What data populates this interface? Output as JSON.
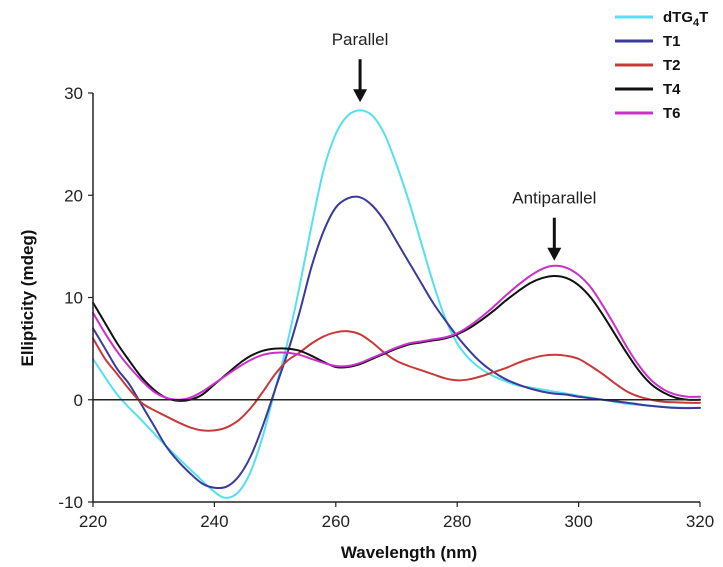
{
  "chart_data": {
    "type": "line",
    "xlabel": "Wavelength (nm)",
    "ylabel": "Ellipticity (mdeg)",
    "xlim": [
      220,
      320
    ],
    "ylim": [
      -10,
      30
    ],
    "x_ticks": [
      220,
      240,
      260,
      280,
      300,
      320
    ],
    "y_ticks": [
      -10,
      0,
      10,
      20,
      30
    ],
    "zero_line": true,
    "grid": false,
    "legend_position": "top-right",
    "legend": [
      {
        "base": "dTG",
        "sub": "4",
        "tail": "T"
      },
      {
        "base": "T1",
        "sub": "",
        "tail": ""
      },
      {
        "base": "T2",
        "sub": "",
        "tail": ""
      },
      {
        "base": "T4",
        "sub": "",
        "tail": ""
      },
      {
        "base": "T6",
        "sub": "",
        "tail": ""
      }
    ],
    "annotations": [
      {
        "text": "Parallel",
        "x": 264,
        "y": 29
      },
      {
        "text": "Antiparallel",
        "x": 296,
        "y": 13.5
      }
    ],
    "series": [
      {
        "name": "dTG4T",
        "color": "#55e0f0",
        "points": [
          [
            220,
            4
          ],
          [
            224,
            0.5
          ],
          [
            228,
            -2
          ],
          [
            232,
            -4.5
          ],
          [
            236,
            -6.8
          ],
          [
            240,
            -9
          ],
          [
            242,
            -9.6
          ],
          [
            244,
            -9
          ],
          [
            246,
            -7
          ],
          [
            248,
            -3.5
          ],
          [
            250,
            1
          ],
          [
            252,
            5.5
          ],
          [
            254,
            11
          ],
          [
            256,
            17
          ],
          [
            258,
            22.5
          ],
          [
            260,
            26
          ],
          [
            262,
            27.8
          ],
          [
            264,
            28.3
          ],
          [
            266,
            27.8
          ],
          [
            268,
            26
          ],
          [
            270,
            23
          ],
          [
            272,
            19.5
          ],
          [
            274,
            15.5
          ],
          [
            276,
            11.5
          ],
          [
            278,
            8
          ],
          [
            280,
            5.5
          ],
          [
            282,
            4
          ],
          [
            284,
            3
          ],
          [
            286,
            2.3
          ],
          [
            288,
            1.8
          ],
          [
            290,
            1.4
          ],
          [
            292,
            1.2
          ],
          [
            294,
            1
          ],
          [
            296,
            0.8
          ],
          [
            298,
            0.6
          ],
          [
            300,
            0.4
          ],
          [
            302,
            0.2
          ],
          [
            304,
            0
          ],
          [
            306,
            -0.2
          ],
          [
            308,
            -0.4
          ],
          [
            310,
            -0.5
          ],
          [
            314,
            -0.7
          ],
          [
            318,
            -0.8
          ],
          [
            320,
            -0.8
          ]
        ]
      },
      {
        "name": "T1",
        "color": "#3a3a9c",
        "points": [
          [
            220,
            7
          ],
          [
            222,
            5
          ],
          [
            224,
            3
          ],
          [
            226,
            1.5
          ],
          [
            228,
            -0.5
          ],
          [
            230,
            -2.5
          ],
          [
            232,
            -4.5
          ],
          [
            234,
            -6
          ],
          [
            236,
            -7.2
          ],
          [
            238,
            -8.2
          ],
          [
            240,
            -8.6
          ],
          [
            242,
            -8.5
          ],
          [
            244,
            -7.5
          ],
          [
            246,
            -5.5
          ],
          [
            248,
            -2.5
          ],
          [
            250,
            1
          ],
          [
            252,
            4.5
          ],
          [
            254,
            8.5
          ],
          [
            256,
            13
          ],
          [
            258,
            16.5
          ],
          [
            260,
            18.8
          ],
          [
            262,
            19.7
          ],
          [
            264,
            19.8
          ],
          [
            266,
            19
          ],
          [
            268,
            17.5
          ],
          [
            270,
            15.5
          ],
          [
            272,
            13.5
          ],
          [
            274,
            11.5
          ],
          [
            276,
            9.5
          ],
          [
            278,
            7.8
          ],
          [
            280,
            6.2
          ],
          [
            282,
            4.8
          ],
          [
            284,
            3.6
          ],
          [
            286,
            2.7
          ],
          [
            288,
            2
          ],
          [
            290,
            1.5
          ],
          [
            292,
            1.1
          ],
          [
            294,
            0.8
          ],
          [
            296,
            0.6
          ],
          [
            298,
            0.5
          ],
          [
            300,
            0.3
          ],
          [
            304,
            0
          ],
          [
            308,
            -0.3
          ],
          [
            312,
            -0.6
          ],
          [
            316,
            -0.8
          ],
          [
            320,
            -0.8
          ]
        ]
      },
      {
        "name": "T2",
        "color": "#c83a3a",
        "points": [
          [
            220,
            6
          ],
          [
            222,
            4
          ],
          [
            224,
            2.5
          ],
          [
            226,
            1
          ],
          [
            228,
            -0.3
          ],
          [
            230,
            -1
          ],
          [
            232,
            -1.6
          ],
          [
            234,
            -2.2
          ],
          [
            236,
            -2.7
          ],
          [
            238,
            -3
          ],
          [
            240,
            -3
          ],
          [
            242,
            -2.7
          ],
          [
            244,
            -2
          ],
          [
            246,
            -0.8
          ],
          [
            248,
            0.8
          ],
          [
            250,
            2.5
          ],
          [
            252,
            3.8
          ],
          [
            254,
            4.6
          ],
          [
            256,
            5.5
          ],
          [
            258,
            6.2
          ],
          [
            260,
            6.6
          ],
          [
            262,
            6.7
          ],
          [
            264,
            6.4
          ],
          [
            266,
            5.6
          ],
          [
            268,
            4.6
          ],
          [
            270,
            3.8
          ],
          [
            272,
            3.3
          ],
          [
            274,
            2.9
          ],
          [
            276,
            2.5
          ],
          [
            278,
            2.1
          ],
          [
            280,
            1.9
          ],
          [
            282,
            2
          ],
          [
            284,
            2.3
          ],
          [
            286,
            2.7
          ],
          [
            288,
            3.1
          ],
          [
            290,
            3.6
          ],
          [
            292,
            4
          ],
          [
            294,
            4.3
          ],
          [
            296,
            4.4
          ],
          [
            298,
            4.3
          ],
          [
            300,
            4
          ],
          [
            302,
            3.3
          ],
          [
            304,
            2.5
          ],
          [
            306,
            1.6
          ],
          [
            308,
            0.8
          ],
          [
            310,
            0.3
          ],
          [
            312,
            0
          ],
          [
            314,
            -0.2
          ],
          [
            318,
            -0.3
          ],
          [
            320,
            -0.3
          ]
        ]
      },
      {
        "name": "T4",
        "color": "#111111",
        "points": [
          [
            220,
            9.5
          ],
          [
            222,
            7.5
          ],
          [
            224,
            5.5
          ],
          [
            226,
            3.8
          ],
          [
            228,
            2.2
          ],
          [
            230,
            1
          ],
          [
            232,
            0.2
          ],
          [
            234,
            -0.1
          ],
          [
            236,
            0
          ],
          [
            238,
            0.5
          ],
          [
            240,
            1.5
          ],
          [
            242,
            2.5
          ],
          [
            244,
            3.5
          ],
          [
            246,
            4.3
          ],
          [
            248,
            4.8
          ],
          [
            250,
            5
          ],
          [
            252,
            5
          ],
          [
            254,
            4.8
          ],
          [
            256,
            4.3
          ],
          [
            258,
            3.7
          ],
          [
            260,
            3.2
          ],
          [
            262,
            3.2
          ],
          [
            264,
            3.5
          ],
          [
            266,
            4
          ],
          [
            268,
            4.5
          ],
          [
            270,
            5
          ],
          [
            272,
            5.4
          ],
          [
            274,
            5.6
          ],
          [
            276,
            5.8
          ],
          [
            278,
            6
          ],
          [
            280,
            6.4
          ],
          [
            282,
            7
          ],
          [
            284,
            7.8
          ],
          [
            286,
            8.7
          ],
          [
            288,
            9.7
          ],
          [
            290,
            10.6
          ],
          [
            292,
            11.4
          ],
          [
            294,
            11.9
          ],
          [
            296,
            12.1
          ],
          [
            298,
            11.9
          ],
          [
            300,
            11.2
          ],
          [
            302,
            10
          ],
          [
            304,
            8.3
          ],
          [
            306,
            6.4
          ],
          [
            308,
            4.5
          ],
          [
            310,
            2.8
          ],
          [
            312,
            1.5
          ],
          [
            314,
            0.7
          ],
          [
            316,
            0.2
          ],
          [
            318,
            0
          ],
          [
            320,
            0
          ]
        ]
      },
      {
        "name": "T6",
        "color": "#cc30cc",
        "points": [
          [
            220,
            8.5
          ],
          [
            222,
            6.5
          ],
          [
            224,
            4.7
          ],
          [
            226,
            3.2
          ],
          [
            228,
            1.9
          ],
          [
            230,
            0.8
          ],
          [
            232,
            0.2
          ],
          [
            234,
            0
          ],
          [
            236,
            0.2
          ],
          [
            238,
            0.8
          ],
          [
            240,
            1.6
          ],
          [
            242,
            2.4
          ],
          [
            244,
            3.2
          ],
          [
            246,
            3.9
          ],
          [
            248,
            4.4
          ],
          [
            250,
            4.6
          ],
          [
            252,
            4.6
          ],
          [
            254,
            4.4
          ],
          [
            256,
            4
          ],
          [
            258,
            3.6
          ],
          [
            260,
            3.3
          ],
          [
            262,
            3.3
          ],
          [
            264,
            3.6
          ],
          [
            266,
            4.1
          ],
          [
            268,
            4.6
          ],
          [
            270,
            5.1
          ],
          [
            272,
            5.5
          ],
          [
            274,
            5.7
          ],
          [
            276,
            5.9
          ],
          [
            278,
            6.1
          ],
          [
            280,
            6.5
          ],
          [
            282,
            7.2
          ],
          [
            284,
            8.1
          ],
          [
            286,
            9.1
          ],
          [
            288,
            10.2
          ],
          [
            290,
            11.2
          ],
          [
            292,
            12.1
          ],
          [
            294,
            12.8
          ],
          [
            296,
            13.1
          ],
          [
            298,
            12.9
          ],
          [
            300,
            12.2
          ],
          [
            302,
            11
          ],
          [
            304,
            9.2
          ],
          [
            306,
            7.2
          ],
          [
            308,
            5.1
          ],
          [
            310,
            3.3
          ],
          [
            312,
            1.9
          ],
          [
            314,
            1
          ],
          [
            316,
            0.5
          ],
          [
            318,
            0.3
          ],
          [
            320,
            0.3
          ]
        ]
      }
    ]
  }
}
